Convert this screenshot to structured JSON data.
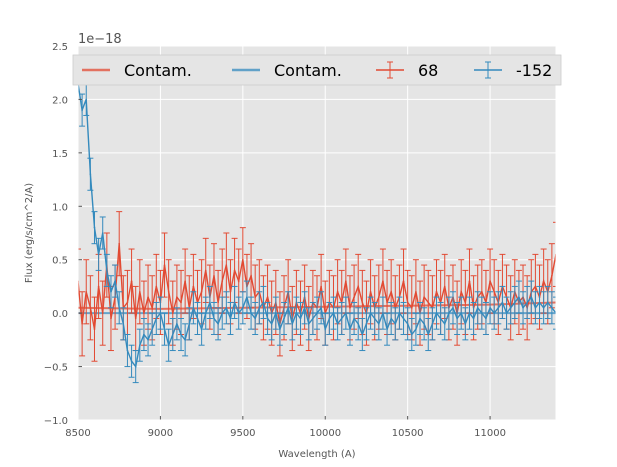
{
  "chart_data": {
    "type": "line",
    "title": "",
    "xlabel": "Wavelength (A)",
    "ylabel": "Flux (erg/s/cm^2/A)",
    "y_offset_label": "1e−18",
    "xlim": [
      8500,
      11400
    ],
    "ylim": [
      -1.0,
      2.5
    ],
    "y_scale_note": "values in units of 1e-18",
    "x_ticks": [
      8500,
      9000,
      9500,
      10000,
      10500,
      11000
    ],
    "x_tick_labels": [
      "8500",
      "9000",
      "9500",
      "10000",
      "10500",
      "11000"
    ],
    "y_ticks": [
      -1.0,
      -0.5,
      0.0,
      0.5,
      1.0,
      1.5,
      2.0,
      2.5
    ],
    "y_tick_labels": [
      "−1.0",
      "−0.5",
      "0.0",
      "0.5",
      "1.0",
      "1.5",
      "2.0",
      "2.5"
    ],
    "grid": true,
    "legend_position": "top",
    "legend": [
      {
        "label": "Contam.",
        "color": "#E24A33",
        "style": "line"
      },
      {
        "label": "Contam.",
        "color": "#348ABD",
        "style": "line"
      },
      {
        "label": "68",
        "color": "#E24A33",
        "style": "errorbar"
      },
      {
        "label": "-152",
        "color": "#348ABD",
        "style": "errorbar"
      }
    ],
    "series": [
      {
        "name": "Contam.",
        "kind": "contamination",
        "color": "#E24A33",
        "x": [
          8500,
          9000,
          9500,
          10000,
          10500,
          11000,
          11400
        ],
        "y": [
          0.05,
          0.04,
          0.05,
          0.06,
          0.07,
          0.08,
          0.1
        ]
      },
      {
        "name": "Contam.",
        "kind": "contamination",
        "color": "#348ABD",
        "x": [
          8500,
          9000,
          9500,
          10000,
          10500,
          11000,
          11400
        ],
        "y": [
          0.0,
          0.0,
          0.0,
          0.0,
          0.0,
          0.0,
          0.0
        ]
      },
      {
        "name": "68",
        "kind": "spectrum",
        "color": "#E24A33",
        "x": [
          8500,
          8525,
          8550,
          8575,
          8600,
          8625,
          8650,
          8675,
          8700,
          8725,
          8750,
          8775,
          8800,
          8825,
          8850,
          8875,
          8900,
          8925,
          8950,
          8975,
          9000,
          9025,
          9050,
          9075,
          9100,
          9125,
          9150,
          9175,
          9200,
          9225,
          9250,
          9275,
          9300,
          9325,
          9350,
          9375,
          9400,
          9425,
          9450,
          9475,
          9500,
          9525,
          9550,
          9575,
          9600,
          9625,
          9650,
          9675,
          9700,
          9725,
          9750,
          9775,
          9800,
          9825,
          9850,
          9875,
          9900,
          9925,
          9950,
          9975,
          10000,
          10025,
          10050,
          10075,
          10100,
          10125,
          10150,
          10175,
          10200,
          10225,
          10250,
          10275,
          10300,
          10325,
          10350,
          10375,
          10400,
          10425,
          10450,
          10475,
          10500,
          10525,
          10550,
          10575,
          10600,
          10625,
          10650,
          10675,
          10700,
          10725,
          10750,
          10775,
          10800,
          10825,
          10850,
          10875,
          10900,
          10925,
          10950,
          10975,
          11000,
          11025,
          11050,
          11075,
          11100,
          11125,
          11150,
          11175,
          11200,
          11225,
          11250,
          11275,
          11300,
          11325,
          11350,
          11375,
          11400
        ],
        "y": [
          0.3,
          -0.1,
          0.2,
          0.05,
          -0.15,
          0.25,
          0.0,
          0.45,
          -0.05,
          0.15,
          0.65,
          0.05,
          0.1,
          0.3,
          -0.05,
          0.2,
          0.0,
          0.15,
          0.05,
          0.25,
          0.1,
          0.45,
          0.2,
          0.0,
          0.15,
          0.1,
          0.3,
          0.05,
          0.25,
          0.1,
          0.2,
          0.4,
          0.15,
          0.35,
          0.1,
          0.3,
          0.45,
          0.2,
          0.4,
          0.3,
          0.5,
          0.25,
          0.35,
          0.15,
          0.2,
          0.05,
          0.15,
          0.0,
          0.1,
          -0.1,
          0.05,
          0.2,
          -0.05,
          0.1,
          0.0,
          0.15,
          -0.05,
          0.1,
          0.05,
          0.25,
          0.0,
          0.1,
          0.05,
          0.2,
          0.1,
          0.3,
          0.05,
          0.15,
          0.25,
          0.1,
          0.0,
          0.2,
          0.05,
          0.15,
          0.3,
          0.1,
          0.2,
          0.05,
          0.15,
          0.3,
          0.1,
          0.05,
          0.2,
          0.0,
          0.15,
          0.1,
          0.05,
          0.2,
          0.1,
          0.25,
          0.05,
          0.15,
          0.0,
          0.2,
          0.1,
          0.3,
          0.05,
          0.15,
          0.2,
          0.1,
          0.3,
          0.2,
          0.1,
          0.25,
          0.15,
          0.05,
          0.2,
          0.1,
          0.15,
          0.05,
          0.2,
          0.25,
          0.15,
          0.3,
          0.2,
          0.35,
          0.55
        ],
        "yerr": 0.3
      },
      {
        "name": "-152",
        "kind": "spectrum",
        "color": "#348ABD",
        "x": [
          8500,
          8525,
          8550,
          8575,
          8600,
          8625,
          8650,
          8675,
          8700,
          8725,
          8750,
          8775,
          8800,
          8825,
          8850,
          8875,
          8900,
          8925,
          8950,
          8975,
          9000,
          9025,
          9050,
          9075,
          9100,
          9125,
          9150,
          9175,
          9200,
          9225,
          9250,
          9275,
          9300,
          9325,
          9350,
          9375,
          9400,
          9425,
          9450,
          9475,
          9500,
          9525,
          9550,
          9575,
          9600,
          9625,
          9650,
          9675,
          9700,
          9725,
          9750,
          9775,
          9800,
          9825,
          9850,
          9875,
          9900,
          9925,
          9950,
          9975,
          10000,
          10025,
          10050,
          10075,
          10100,
          10125,
          10150,
          10175,
          10200,
          10225,
          10250,
          10275,
          10300,
          10325,
          10350,
          10375,
          10400,
          10425,
          10450,
          10475,
          10500,
          10525,
          10550,
          10575,
          10600,
          10625,
          10650,
          10675,
          10700,
          10725,
          10750,
          10775,
          10800,
          10825,
          10850,
          10875,
          10900,
          10925,
          10950,
          10975,
          11000,
          11025,
          11050,
          11075,
          11100,
          11125,
          11150,
          11175,
          11200,
          11225,
          11250,
          11275,
          11300,
          11325,
          11350,
          11375,
          11400
        ],
        "y": [
          2.15,
          1.9,
          2.0,
          1.3,
          0.8,
          0.55,
          0.75,
          0.4,
          0.2,
          0.3,
          0.05,
          -0.1,
          -0.35,
          -0.45,
          -0.5,
          -0.3,
          -0.2,
          -0.25,
          -0.15,
          -0.05,
          0.0,
          -0.15,
          -0.3,
          -0.2,
          -0.1,
          -0.2,
          -0.25,
          -0.1,
          0.05,
          -0.05,
          -0.15,
          0.0,
          0.1,
          -0.05,
          -0.1,
          0.0,
          0.05,
          -0.05,
          0.1,
          0.0,
          0.05,
          0.15,
          0.0,
          -0.05,
          0.05,
          0.1,
          -0.05,
          -0.1,
          0.0,
          -0.15,
          -0.05,
          0.05,
          -0.1,
          0.0,
          -0.05,
          0.05,
          -0.1,
          -0.05,
          0.0,
          0.05,
          -0.15,
          -0.05,
          0.0,
          -0.1,
          -0.05,
          0.0,
          -0.15,
          -0.05,
          -0.1,
          -0.2,
          -0.1,
          0.0,
          -0.05,
          -0.1,
          0.0,
          -0.15,
          -0.05,
          -0.1,
          0.0,
          -0.05,
          -0.1,
          -0.2,
          -0.15,
          -0.05,
          -0.1,
          -0.2,
          -0.1,
          0.0,
          -0.05,
          -0.1,
          0.0,
          0.05,
          -0.05,
          0.0,
          -0.1,
          0.0,
          -0.05,
          0.05,
          0.0,
          -0.05,
          0.05,
          0.0,
          0.05,
          0.1,
          0.0,
          0.05,
          0.1,
          0.15,
          0.05,
          0.1,
          0.15,
          0.05,
          0.1,
          0.05,
          0.1,
          0.05,
          0.0
        ],
        "yerr": 0.15
      }
    ]
  }
}
